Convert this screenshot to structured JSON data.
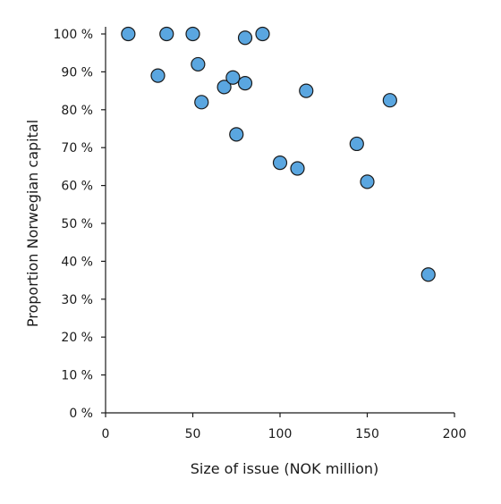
{
  "chart_data": {
    "type": "scatter",
    "title": "",
    "xlabel": "Size of issue (NOK million)",
    "ylabel": "Proportion Norwegian capital",
    "xlim": [
      0,
      200
    ],
    "ylim": [
      0,
      100
    ],
    "x_ticks": [
      0,
      50,
      100,
      150,
      200
    ],
    "y_ticks": [
      0,
      10,
      20,
      30,
      40,
      50,
      60,
      70,
      80,
      90,
      100
    ],
    "x_tick_labels": [
      "0",
      "50",
      "100",
      "150",
      "200"
    ],
    "y_tick_labels": [
      "0 %",
      "10 %",
      "20 %",
      "30 %",
      "40 %",
      "50 %",
      "60 %",
      "70 %",
      "80 %",
      "90 %",
      "100 %"
    ],
    "grid": false,
    "legend": "none",
    "marker_color": "#5aa6e0",
    "marker_edge_color": "#1a1a1a",
    "points": [
      {
        "x": 13,
        "y": 100
      },
      {
        "x": 35,
        "y": 100
      },
      {
        "x": 50,
        "y": 100
      },
      {
        "x": 80,
        "y": 99
      },
      {
        "x": 90,
        "y": 100
      },
      {
        "x": 30,
        "y": 89
      },
      {
        "x": 53,
        "y": 92
      },
      {
        "x": 68,
        "y": 86
      },
      {
        "x": 73,
        "y": 88.5
      },
      {
        "x": 80,
        "y": 87
      },
      {
        "x": 55,
        "y": 82
      },
      {
        "x": 115,
        "y": 85
      },
      {
        "x": 163,
        "y": 82.5
      },
      {
        "x": 75,
        "y": 73.5
      },
      {
        "x": 144,
        "y": 71
      },
      {
        "x": 100,
        "y": 66
      },
      {
        "x": 110,
        "y": 64.5
      },
      {
        "x": 150,
        "y": 61
      },
      {
        "x": 185,
        "y": 36.5
      }
    ]
  }
}
